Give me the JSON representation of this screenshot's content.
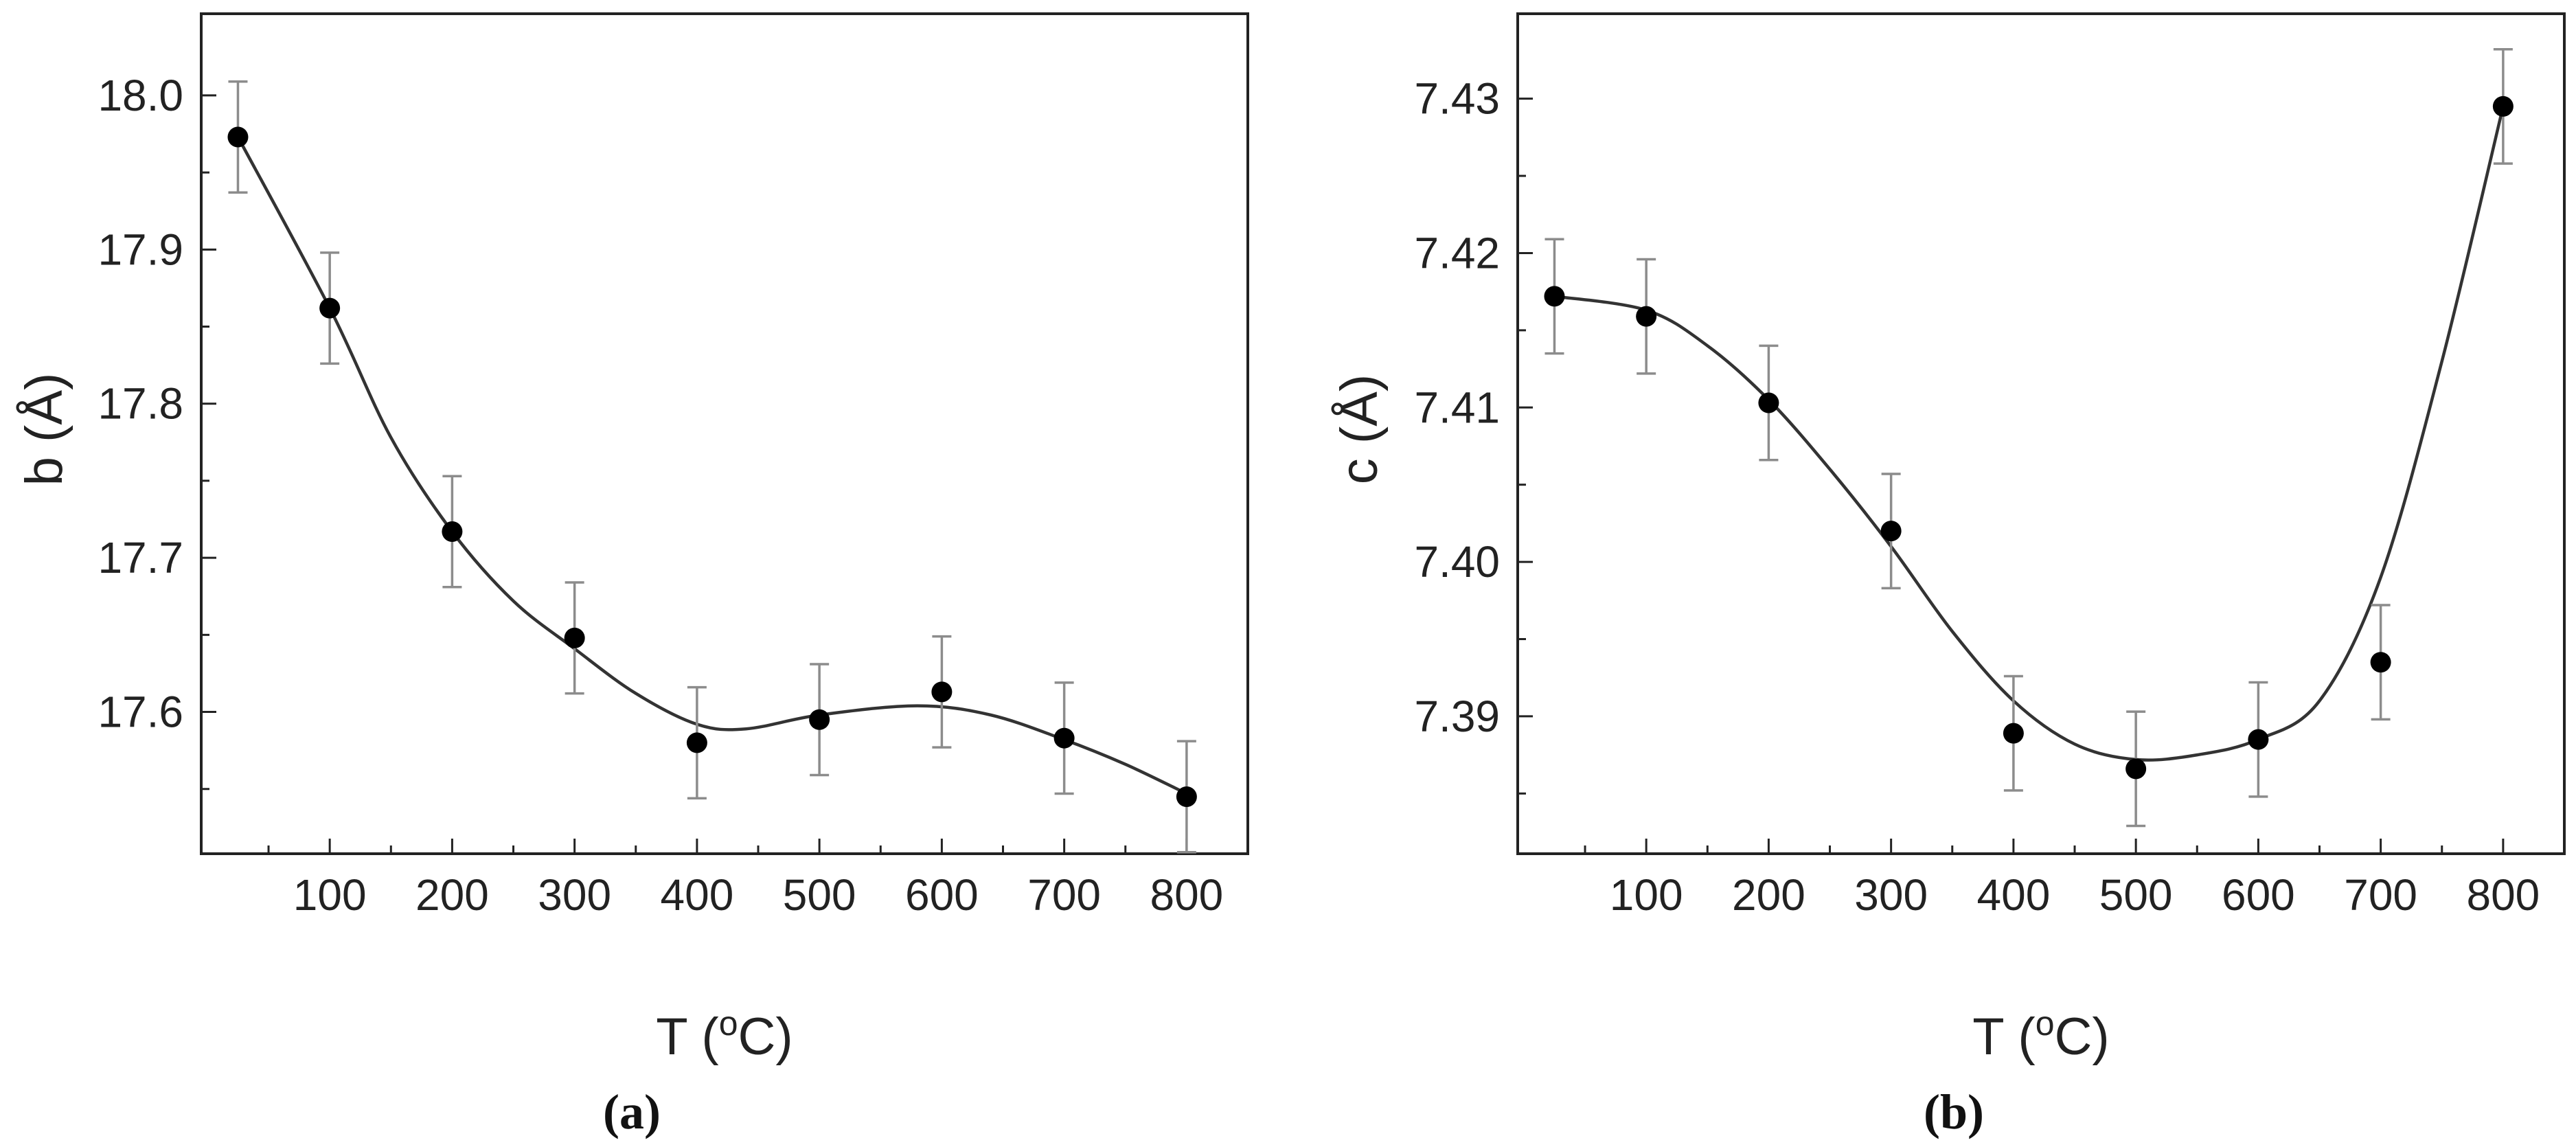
{
  "chart_data": [
    {
      "type": "scatter",
      "panel_label": "(a)",
      "xlabel": "T (oC)",
      "xlabel_main": "T (",
      "xlabel_sup": "o",
      "xlabel_end": "C)",
      "ylabel": "b (Å)",
      "xlim": [
        -5,
        850
      ],
      "ylim": [
        17.508,
        18.053
      ],
      "xticks": [
        100,
        200,
        300,
        400,
        500,
        600,
        700,
        800
      ],
      "yticks": [
        17.6,
        17.7,
        17.8,
        17.9,
        18.0
      ],
      "ytick_decimals": 1,
      "grid": false,
      "legend": "none",
      "series": [
        {
          "name": "b",
          "x": [
            25,
            100,
            200,
            300,
            400,
            500,
            600,
            700,
            800
          ],
          "y": [
            17.973,
            17.862,
            17.717,
            17.648,
            17.58,
            17.595,
            17.613,
            17.583,
            17.545
          ],
          "yerr": [
            0.036,
            0.036,
            0.036,
            0.036,
            0.036,
            0.036,
            0.036,
            0.036,
            0.036
          ]
        }
      ],
      "fit_curve": {
        "x": [
          25,
          100,
          150,
          200,
          250,
          300,
          350,
          400,
          440,
          500,
          580,
          640,
          700,
          750,
          800
        ],
        "y": [
          17.973,
          17.862,
          17.778,
          17.717,
          17.672,
          17.641,
          17.612,
          17.592,
          17.589,
          17.598,
          17.604,
          17.598,
          17.582,
          17.566,
          17.547
        ]
      }
    },
    {
      "type": "scatter",
      "panel_label": "(b)",
      "xlabel": "T (oC)",
      "xlabel_main": "T (",
      "xlabel_sup": "o",
      "xlabel_end": "C)",
      "ylabel": "c (Å)",
      "xlim": [
        -5,
        850
      ],
      "ylim": [
        7.3811,
        7.4355
      ],
      "xticks": [
        100,
        200,
        300,
        400,
        500,
        600,
        700,
        800
      ],
      "yticks": [
        7.39,
        7.4,
        7.41,
        7.42,
        7.43
      ],
      "ytick_decimals": 2,
      "grid": false,
      "legend": "none",
      "series": [
        {
          "name": "c",
          "x": [
            25,
            100,
            200,
            300,
            400,
            500,
            600,
            700,
            800
          ],
          "y": [
            7.4172,
            7.4159,
            7.4103,
            7.402,
            7.3889,
            7.3866,
            7.3885,
            7.3935,
            7.4295
          ],
          "yerr": [
            0.0037,
            0.0037,
            0.0037,
            0.0037,
            0.0037,
            0.0037,
            0.0037,
            0.0037,
            0.0037
          ]
        }
      ],
      "fit_curve": {
        "x": [
          25,
          100,
          150,
          200,
          250,
          300,
          350,
          400,
          450,
          500,
          550,
          600,
          650,
          700,
          750,
          800
        ],
        "y": [
          7.4172,
          7.4163,
          7.414,
          7.4105,
          7.406,
          7.401,
          7.3955,
          7.391,
          7.3882,
          7.3872,
          7.3875,
          7.3885,
          7.391,
          7.399,
          7.413,
          7.4295
        ]
      }
    }
  ]
}
